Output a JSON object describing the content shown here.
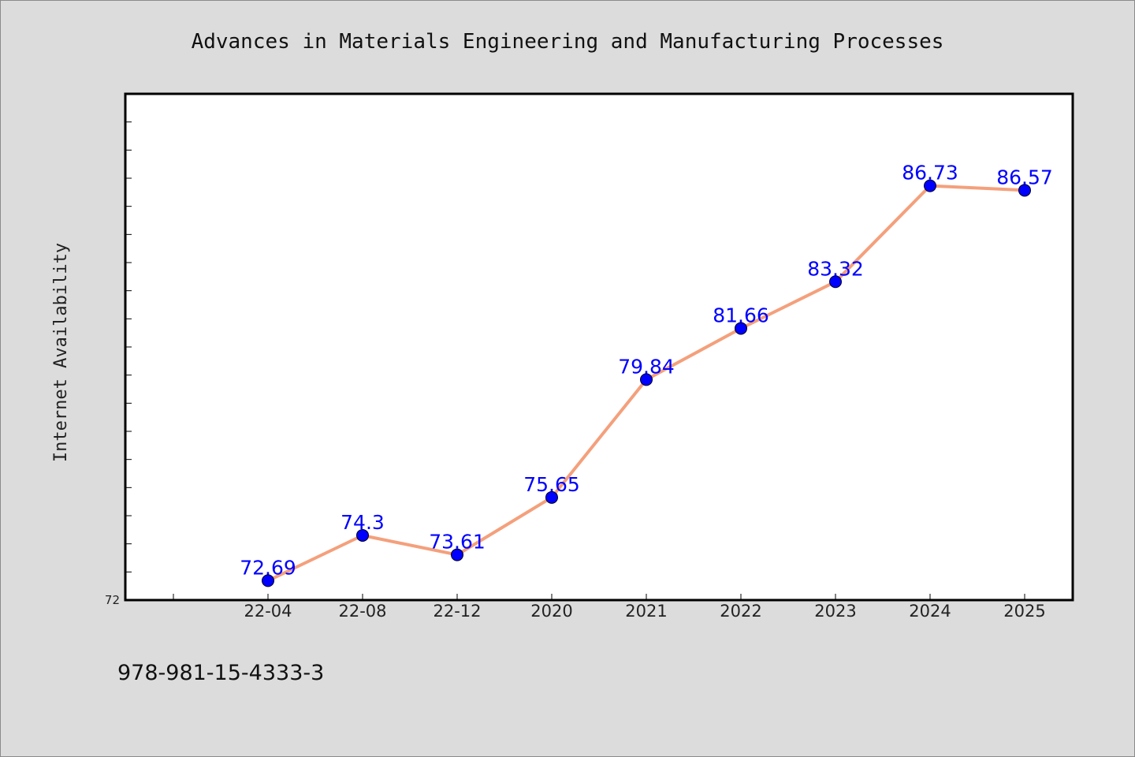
{
  "chart_data": {
    "type": "line",
    "title": "Advances in Materials Engineering and Manufacturing Processes",
    "ylabel": "Internet Availability",
    "xlabel": "",
    "categories": [
      "22-04",
      "22-08",
      "22-12",
      "2020",
      "2021",
      "2022",
      "2023",
      "2024",
      "2025"
    ],
    "series": [
      {
        "values": [
          72.69,
          74.3,
          73.61,
          75.65,
          79.84,
          81.66,
          83.32,
          86.73,
          86.57
        ],
        "data_labels": [
          "72.69",
          "74.3",
          "73.61",
          "75.65",
          "79.84",
          "81.66",
          "83.32",
          "86.73",
          "86.57"
        ]
      }
    ],
    "ylim": [
      72,
      90
    ],
    "y_tick_labels": [
      "72"
    ],
    "grid": false,
    "legend": "none",
    "colors": {
      "line": "#f4a07c",
      "marker": "#0000ff",
      "data_label": "#0000ff",
      "background": "#dcdcdc",
      "plot_background": "#ffffff"
    }
  },
  "footer": {
    "isbn": "978-981-15-4333-3"
  }
}
